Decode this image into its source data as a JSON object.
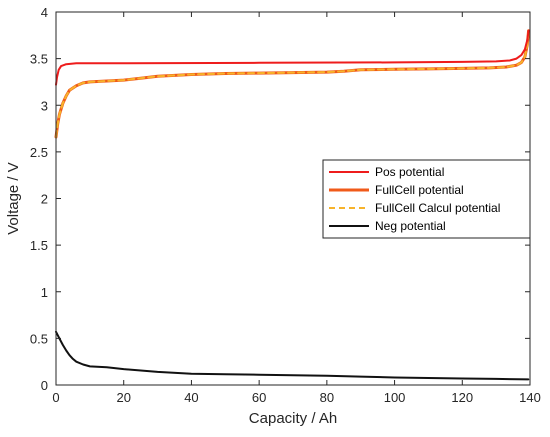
{
  "chart_data": {
    "type": "line",
    "xlabel": "Capacity / Ah",
    "ylabel": "Voltage / V",
    "xlim": [
      0,
      140
    ],
    "ylim": [
      0,
      4
    ],
    "xticks": [
      0,
      20,
      40,
      60,
      80,
      100,
      120,
      140
    ],
    "yticks": [
      0,
      0.5,
      1,
      1.5,
      2,
      2.5,
      3,
      3.5,
      4
    ],
    "xtick_labels": [
      "0",
      "20",
      "40",
      "60",
      "80",
      "100",
      "120",
      "140"
    ],
    "ytick_labels": [
      "0",
      "0.5",
      "1",
      "1.5",
      "2",
      "2.5",
      "3",
      "3.5",
      "4"
    ],
    "grid": false,
    "legend_position": "right",
    "series": [
      {
        "name": "Pos potential",
        "color": "#ee1c1c",
        "style": "solid",
        "points": [
          [
            0,
            3.22
          ],
          [
            0.3,
            3.3
          ],
          [
            0.8,
            3.38
          ],
          [
            1.5,
            3.42
          ],
          [
            3,
            3.44
          ],
          [
            6,
            3.45
          ],
          [
            20,
            3.45
          ],
          [
            60,
            3.455
          ],
          [
            100,
            3.46
          ],
          [
            120,
            3.465
          ],
          [
            130,
            3.47
          ],
          [
            134,
            3.48
          ],
          [
            136,
            3.5
          ],
          [
            137.5,
            3.54
          ],
          [
            138.5,
            3.6
          ],
          [
            139.2,
            3.7
          ],
          [
            139.6,
            3.8
          ]
        ]
      },
      {
        "name": "FullCell potential",
        "color": "#f05a1a",
        "style": "solid",
        "points": [
          [
            0,
            2.66
          ],
          [
            0.5,
            2.8
          ],
          [
            1,
            2.9
          ],
          [
            2,
            3.02
          ],
          [
            3,
            3.1
          ],
          [
            4,
            3.16
          ],
          [
            6,
            3.21
          ],
          [
            8,
            3.24
          ],
          [
            10,
            3.25
          ],
          [
            15,
            3.26
          ],
          [
            20,
            3.27
          ],
          [
            25,
            3.29
          ],
          [
            30,
            3.31
          ],
          [
            35,
            3.32
          ],
          [
            40,
            3.33
          ],
          [
            50,
            3.34
          ],
          [
            60,
            3.345
          ],
          [
            70,
            3.35
          ],
          [
            80,
            3.355
          ],
          [
            85,
            3.365
          ],
          [
            90,
            3.38
          ],
          [
            100,
            3.385
          ],
          [
            110,
            3.39
          ],
          [
            120,
            3.395
          ],
          [
            128,
            3.4
          ],
          [
            133,
            3.41
          ],
          [
            136,
            3.43
          ],
          [
            137.5,
            3.46
          ],
          [
            138.5,
            3.52
          ],
          [
            139.2,
            3.65
          ],
          [
            139.6,
            3.8
          ]
        ]
      },
      {
        "name": "FullCell Calcul potential",
        "color": "#f7b32b",
        "style": "dashed",
        "points": [
          [
            0,
            2.66
          ],
          [
            0.5,
            2.8
          ],
          [
            1,
            2.9
          ],
          [
            2,
            3.02
          ],
          [
            3,
            3.1
          ],
          [
            4,
            3.16
          ],
          [
            6,
            3.21
          ],
          [
            8,
            3.24
          ],
          [
            10,
            3.25
          ],
          [
            15,
            3.26
          ],
          [
            20,
            3.27
          ],
          [
            25,
            3.29
          ],
          [
            30,
            3.31
          ],
          [
            35,
            3.32
          ],
          [
            40,
            3.33
          ],
          [
            50,
            3.34
          ],
          [
            60,
            3.345
          ],
          [
            70,
            3.35
          ],
          [
            80,
            3.355
          ],
          [
            85,
            3.365
          ],
          [
            90,
            3.38
          ],
          [
            100,
            3.385
          ],
          [
            110,
            3.39
          ],
          [
            120,
            3.395
          ],
          [
            128,
            3.4
          ],
          [
            133,
            3.41
          ],
          [
            136,
            3.43
          ],
          [
            137.5,
            3.46
          ],
          [
            138.5,
            3.52
          ],
          [
            139.2,
            3.65
          ],
          [
            139.6,
            3.8
          ]
        ]
      },
      {
        "name": "Neg potential",
        "color": "#111111",
        "style": "solid",
        "points": [
          [
            0,
            0.57
          ],
          [
            1,
            0.5
          ],
          [
            2,
            0.43
          ],
          [
            3,
            0.37
          ],
          [
            4,
            0.32
          ],
          [
            5,
            0.28
          ],
          [
            6,
            0.25
          ],
          [
            8,
            0.22
          ],
          [
            10,
            0.2
          ],
          [
            15,
            0.19
          ],
          [
            20,
            0.17
          ],
          [
            30,
            0.14
          ],
          [
            40,
            0.12
          ],
          [
            50,
            0.115
          ],
          [
            60,
            0.11
          ],
          [
            70,
            0.105
          ],
          [
            80,
            0.1
          ],
          [
            90,
            0.09
          ],
          [
            100,
            0.08
          ],
          [
            110,
            0.075
          ],
          [
            120,
            0.07
          ],
          [
            130,
            0.065
          ],
          [
            139.5,
            0.06
          ]
        ]
      }
    ]
  }
}
